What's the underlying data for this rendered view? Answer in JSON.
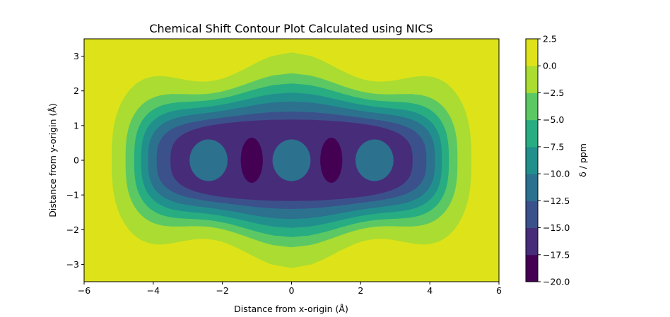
{
  "chart_data": {
    "type": "contourf",
    "title": "Chemical Shift Contour Plot Calculated using NICS",
    "xlabel": "Distance from x-origin (Å)",
    "ylabel": "Distance from y-origin (Å)",
    "colorbar_label": "δ / ppm",
    "xlim": [
      -6,
      6
    ],
    "ylim": [
      -3.5,
      3.5
    ],
    "xticks": [
      -6,
      -4,
      -2,
      0,
      2,
      4,
      6
    ],
    "yticks": [
      -3,
      -2,
      -1,
      0,
      1,
      2,
      3
    ],
    "xtick_labels": [
      "−6",
      "−4",
      "−2",
      "0",
      "2",
      "4",
      "6"
    ],
    "ytick_labels": [
      "−3",
      "−2",
      "−1",
      "0",
      "1",
      "2",
      "3"
    ],
    "levels": [
      -20.0,
      -17.5,
      -15.0,
      -12.5,
      -10.0,
      -7.5,
      -5.0,
      -2.5,
      0.0,
      2.5
    ],
    "level_labels": [
      "−20.0",
      "−17.5",
      "−15.0",
      "−12.5",
      "−10.0",
      "−7.5",
      "−5.0",
      "−2.5",
      "0.0",
      "2.5"
    ],
    "band_colors": [
      "#440154",
      "#472c7a",
      "#3b518b",
      "#2c718e",
      "#21908d",
      "#27ad81",
      "#5cc863",
      "#aadc32",
      "#dde318"
    ],
    "rings": [
      {
        "center": [
          -2.4,
          0.0
        ],
        "core": -12.5
      },
      {
        "center": [
          0.0,
          0.0
        ],
        "core": -12.5
      },
      {
        "center": [
          2.4,
          0.0
        ],
        "core": -12.5
      }
    ],
    "grid": false
  }
}
